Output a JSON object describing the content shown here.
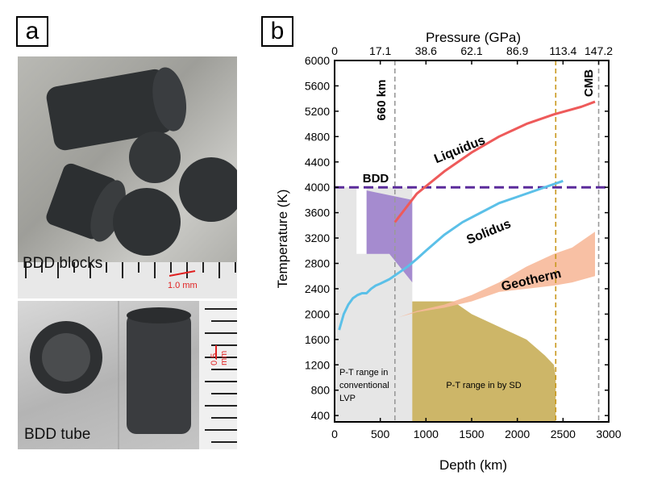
{
  "panel_a": {
    "label": "a",
    "caption_blocks": "BDD blocks",
    "caption_tube": "BDD tube",
    "scale_blocks": "1.0 mm",
    "scale_tube": "0.5 mm"
  },
  "panel_b": {
    "label": "b"
  },
  "chart_data": {
    "type": "line",
    "xlabel": "Depth (km)",
    "ylabel": "Temperature (K)",
    "top_axis_label": "Pressure (GPa)",
    "xlim": [
      0,
      3000
    ],
    "ylim": [
      300,
      6000
    ],
    "x_ticks": [
      "0",
      "500",
      "1000",
      "1500",
      "2000",
      "2500",
      "3000"
    ],
    "y_ticks": [
      "400",
      "800",
      "1200",
      "1600",
      "2000",
      "2400",
      "2800",
      "3200",
      "3600",
      "4000",
      "4400",
      "4800",
      "5200",
      "5600",
      "6000"
    ],
    "top_ticks": [
      {
        "label": "0",
        "depth": 0
      },
      {
        "label": "17.1",
        "depth": 500
      },
      {
        "label": "38.6",
        "depth": 1000
      },
      {
        "label": "62.1",
        "depth": 1500
      },
      {
        "label": "86.9",
        "depth": 2000
      },
      {
        "label": "113.4",
        "depth": 2500
      },
      {
        "label": "147.2",
        "depth": 2890
      }
    ],
    "vertical_lines": [
      {
        "label": "660 km",
        "depth": 660
      },
      {
        "label": "",
        "depth": 2420
      },
      {
        "label": "CMB",
        "depth": 2890
      }
    ],
    "bdd_line": {
      "label": "BDD",
      "temperature": 4000
    },
    "series": [
      {
        "name": "Liquidus",
        "color": "#ee5a5a",
        "x": [
          660,
          900,
          1200,
          1500,
          1800,
          2100,
          2400,
          2700,
          2850
        ],
        "y": [
          3450,
          3900,
          4250,
          4550,
          4800,
          5000,
          5150,
          5270,
          5350
        ]
      },
      {
        "name": "Solidus",
        "color": "#5bc0e8",
        "x": [
          50,
          100,
          150,
          200,
          250,
          300,
          350,
          400,
          450,
          500,
          600,
          700,
          800,
          900,
          1000,
          1200,
          1400,
          1600,
          1800,
          2000,
          2200,
          2500
        ],
        "y": [
          1750,
          2000,
          2150,
          2250,
          2300,
          2330,
          2330,
          2400,
          2450,
          2480,
          2550,
          2650,
          2750,
          2870,
          3000,
          3250,
          3450,
          3600,
          3750,
          3850,
          3950,
          4100
        ]
      }
    ],
    "geotherm": {
      "label": "Geotherm",
      "x": [
        0,
        50,
        150,
        300,
        500,
        700,
        900,
        1200,
        1500,
        1800,
        2100,
        2400,
        2600,
        2850
      ],
      "lower": [
        800,
        1300,
        1600,
        1750,
        1850,
        1950,
        2030,
        2100,
        2200,
        2350,
        2400,
        2450,
        2500,
        2600
      ],
      "upper": [
        800,
        1300,
        1600,
        1750,
        1850,
        1950,
        2050,
        2150,
        2300,
        2500,
        2750,
        2950,
        3050,
        3300
      ]
    },
    "regions": [
      {
        "name": "conventional LVP",
        "label": "P-T range in conventional LVP",
        "color": "#e6e6e6"
      },
      {
        "name": "SD",
        "label": "P-T range in by SD",
        "color": "#cdb668"
      },
      {
        "name": "BDD",
        "label": "BDD",
        "color": "#a58bcf"
      }
    ],
    "lvp_region": {
      "x": [
        0,
        850
      ],
      "y": [
        300,
        4000
      ]
    },
    "sd_region": {
      "x": [
        850,
        850,
        1300,
        1500,
        1800,
        2100,
        2300,
        2400,
        2420,
        2420
      ],
      "y": [
        300,
        2200,
        2200,
        2000,
        1800,
        1600,
        1350,
        1200,
        1000,
        300
      ]
    },
    "bdd_region": {
      "x": [
        350,
        850,
        850,
        600,
        350
      ],
      "y": [
        3950,
        3800,
        2500,
        2950,
        2950
      ]
    },
    "annotations": [
      "Liquidus",
      "Solidus",
      "Geotherm",
      "BDD",
      "660 km",
      "CMB"
    ]
  }
}
